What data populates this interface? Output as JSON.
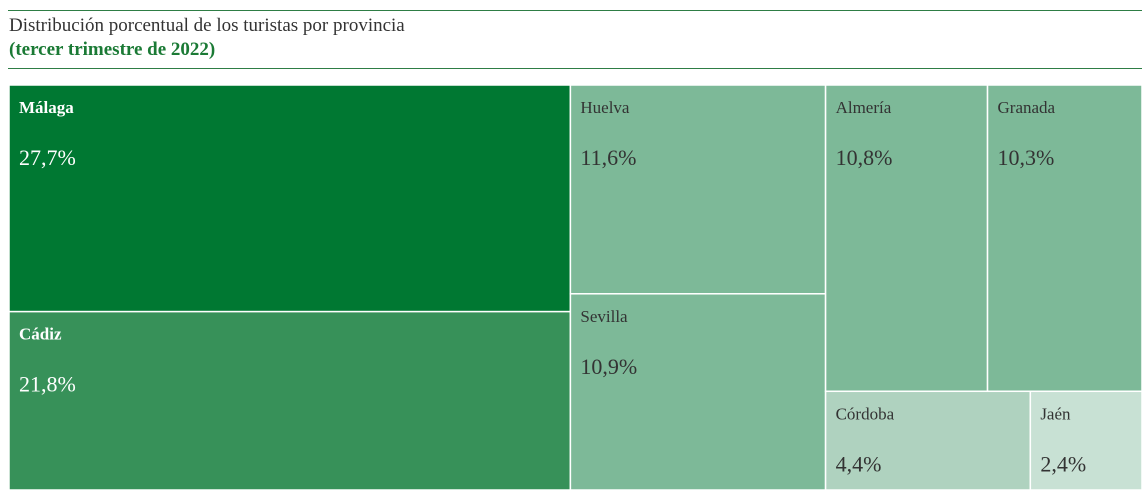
{
  "header": {
    "title": "Distribución porcentual de los turistas por provincia",
    "subtitle": "(tercer trimestre de 2022)"
  },
  "colors": {
    "rule": "#2e7d45",
    "subtitle": "#1b7a35",
    "text_dark": "#333333",
    "text_light": "#ffffff"
  },
  "chart_data": {
    "type": "treemap",
    "title": "Distribución porcentual de los turistas por provincia",
    "subtitle": "(tercer trimestre de 2022)",
    "unit": "%",
    "items": [
      {
        "name": "Málaga",
        "value": 27.7,
        "label": "27,7%",
        "color": "#007832"
      },
      {
        "name": "Cádiz",
        "value": 21.8,
        "label": "21,8%",
        "color": "#379159"
      },
      {
        "name": "Huelva",
        "value": 11.6,
        "label": "11,6%",
        "color": "#7db998"
      },
      {
        "name": "Sevilla",
        "value": 10.9,
        "label": "10,9%",
        "color": "#7db998"
      },
      {
        "name": "Almería",
        "value": 10.8,
        "label": "10,8%",
        "color": "#7db998"
      },
      {
        "name": "Granada",
        "value": 10.3,
        "label": "10,3%",
        "color": "#7db998"
      },
      {
        "name": "Córdoba",
        "value": 4.4,
        "label": "4,4%",
        "color": "#afd2bf"
      },
      {
        "name": "Jaén",
        "value": 2.4,
        "label": "2,4%",
        "color": "#c8e1d4"
      }
    ]
  }
}
